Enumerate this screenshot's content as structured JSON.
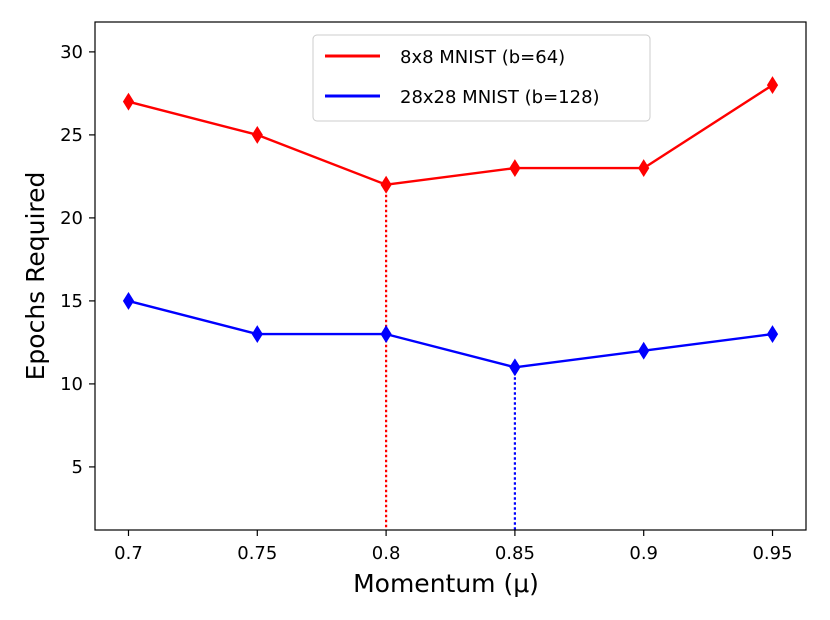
{
  "chart_data": {
    "type": "line",
    "title": "",
    "xlabel": "Momentum (μ)",
    "ylabel": "Epochs Required",
    "x": [
      0.7,
      0.75,
      0.8,
      0.85,
      0.9,
      0.95
    ],
    "x_tick_labels": [
      "0.7",
      "0.75",
      "0.8",
      "0.85",
      "0.9",
      "0.95"
    ],
    "y_ticks": [
      5,
      10,
      15,
      20,
      25,
      30
    ],
    "y_tick_labels": [
      "5",
      "10",
      "15",
      "20",
      "25",
      "30"
    ],
    "xlim": [
      0.687,
      0.963
    ],
    "ylim": [
      1.2,
      31.8
    ],
    "grid": false,
    "legend_position": "top-center",
    "series": [
      {
        "name": "8x8 MNIST (b=64)",
        "color": "#ff0000",
        "marker": "diamond",
        "values": [
          27,
          25,
          22,
          23,
          23,
          28
        ],
        "optimum_x": 0.8,
        "optimum_y": 22
      },
      {
        "name": "28x28 MNIST (b=128)",
        "color": "#0000ff",
        "marker": "diamond",
        "values": [
          15,
          13,
          13,
          11,
          12,
          13
        ],
        "optimum_x": 0.85,
        "optimum_y": 11
      }
    ]
  }
}
